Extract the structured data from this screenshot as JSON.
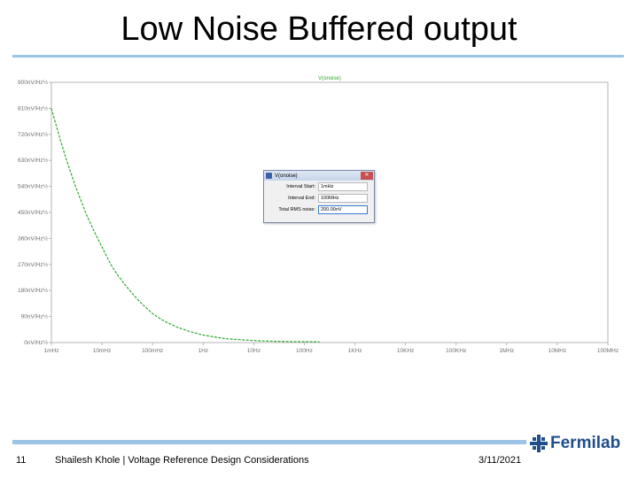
{
  "slide": {
    "title": "Low Noise Buffered output",
    "page_number": "11",
    "footer_text": "Shailesh Khole | Voltage Reference Design Considerations",
    "date": "3/11/2021",
    "logo_text": "Fermilab"
  },
  "dialog": {
    "title": "V(onoise)",
    "rows": [
      {
        "label": "Interval Start:",
        "value": "1mHz"
      },
      {
        "label": "Interval End:",
        "value": "100MHz"
      },
      {
        "label": "Total RMS noise:",
        "value": "200.00nV"
      }
    ]
  },
  "colors": {
    "trace": "#2ea82e",
    "title_rule": "#9dc3e6",
    "logo": "#1f4e8c"
  },
  "chart_data": {
    "type": "line",
    "title": "V(onoise)",
    "ylabel": "nV/√Hz",
    "xscale": "log",
    "xlim": [
      0.001,
      100000000
    ],
    "ylim": [
      0,
      900
    ],
    "y_ticks": [
      "900nV/Hz½",
      "810nV/Hz½",
      "720nV/Hz½",
      "630nV/Hz½",
      "540nV/Hz½",
      "450nV/Hz½",
      "360nV/Hz½",
      "270nV/Hz½",
      "180nV/Hz½",
      "90nV/Hz½",
      "0nV/Hz½"
    ],
    "x_ticks": [
      "1mHz",
      "10mHz",
      "100mHz",
      "1Hz",
      "10Hz",
      "100Hz",
      "1KHz",
      "10KHz",
      "100KHz",
      "1MHz",
      "10MHz",
      "100MHz"
    ],
    "grid": false,
    "series": [
      {
        "name": "V(onoise)",
        "x": [
          0.001,
          0.0015,
          0.002,
          0.003,
          0.005,
          0.007,
          0.01,
          0.015,
          0.02,
          0.03,
          0.05,
          0.07,
          0.1,
          0.15,
          0.2,
          0.3,
          0.5,
          0.7,
          1,
          2,
          3,
          5,
          10,
          20,
          50,
          100,
          200
        ],
        "y": [
          810,
          700,
          630,
          540,
          440,
          385,
          330,
          270,
          235,
          195,
          150,
          125,
          100,
          80,
          68,
          54,
          40,
          33,
          26,
          17,
          13,
          10,
          7,
          5,
          3.5,
          3,
          2.5
        ]
      }
    ]
  }
}
